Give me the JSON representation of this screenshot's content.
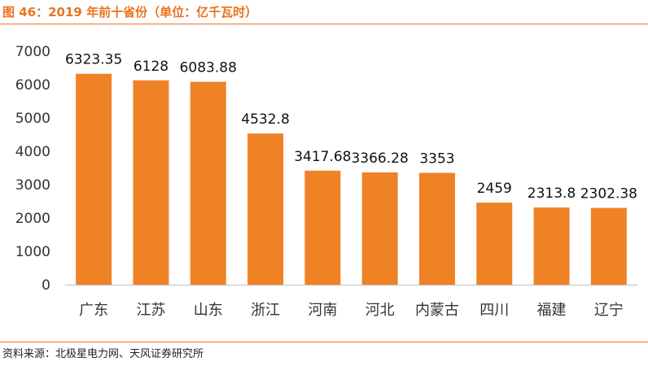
{
  "figure": {
    "title": "图 46：2019 年前十省份（单位：亿千瓦时）",
    "source": "资料来源：北极星电力网、天风证券研究所"
  },
  "colors": {
    "accent": "#e8731f",
    "bar": "#f08226"
  },
  "chart_data": {
    "type": "bar",
    "title": "",
    "xlabel": "",
    "ylabel": "",
    "categories": [
      "广东",
      "江苏",
      "山东",
      "浙江",
      "河南",
      "河北",
      "内蒙古",
      "四川",
      "福建",
      "辽宁"
    ],
    "values": [
      6323.35,
      6128,
      6083.88,
      4532.8,
      3417.68,
      3366.28,
      3353,
      2459,
      2313.8,
      2302.38
    ],
    "data_labels": [
      "6323.35",
      "6128",
      "6083.88",
      "4532.8",
      "3417.68",
      "3366.28",
      "3353",
      "2459",
      "2313.8",
      "2302.38"
    ],
    "ylim": [
      0,
      7000
    ],
    "yticks": [
      0,
      1000,
      2000,
      3000,
      4000,
      5000,
      6000,
      7000
    ],
    "grid": false,
    "legend": "none"
  }
}
